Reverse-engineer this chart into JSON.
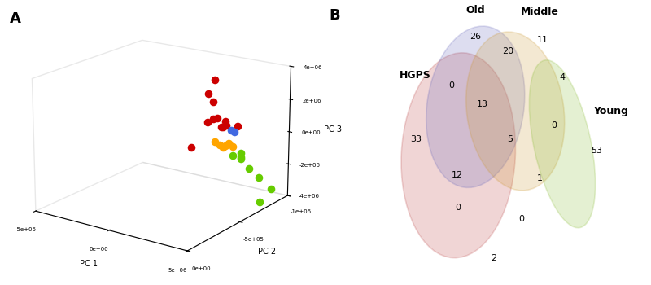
{
  "panel_a_label": "A",
  "panel_b_label": "B",
  "pc1_label": "PC 1",
  "pc2_label": "PC 2",
  "pc3_label": "PC 3",
  "young_color": "#66cc00",
  "middle_color": "#FFA500",
  "old_color": "#4169E1",
  "hgps_color": "#CC0000",
  "young_points": [
    [
      4800000.0,
      -450000.0,
      100000.0
    ],
    [
      5000000.0,
      -500000.0,
      150000.0
    ],
    [
      5100000.0,
      -480000.0,
      0.0
    ],
    [
      4900000.0,
      -520000.0,
      -300000.0
    ],
    [
      5200000.0,
      -550000.0,
      -900000.0
    ],
    [
      5500000.0,
      -600000.0,
      -1500000.0
    ],
    [
      5700000.0,
      -700000.0,
      -2500000.0
    ],
    [
      5300000.0,
      -650000.0,
      -3200000.0
    ]
  ],
  "middle_points": [
    [
      4000000.0,
      -400000.0,
      900000.0
    ],
    [
      4200000.0,
      -420000.0,
      700000.0
    ],
    [
      4400000.0,
      -440000.0,
      650000.0
    ],
    [
      4500000.0,
      -460000.0,
      750000.0
    ],
    [
      4300000.0,
      -430000.0,
      550000.0
    ],
    [
      4600000.0,
      -480000.0,
      500000.0
    ]
  ],
  "old_points": [
    [
      4600000.0,
      -460000.0,
      1500000.0
    ],
    [
      4700000.0,
      -480000.0,
      1400000.0
    ]
  ],
  "hgps_points": [
    [
      3000000.0,
      -550000.0,
      3950000.0
    ],
    [
      1800000.0,
      -720000.0,
      2000000.0
    ],
    [
      3500000.0,
      -500000.0,
      1900000.0
    ],
    [
      3200000.0,
      -450000.0,
      1750000.0
    ],
    [
      3700000.0,
      -550000.0,
      1650000.0
    ],
    [
      4000000.0,
      -480000.0,
      1550000.0
    ],
    [
      3600000.0,
      -520000.0,
      1350000.0
    ],
    [
      3400000.0,
      -600000.0,
      1200000.0
    ],
    [
      3800000.0,
      -650000.0,
      1100000.0
    ],
    [
      800000.0,
      -820000.0,
      2050000.0
    ],
    [
      500000.0,
      -920000.0,
      150000.0
    ],
    [
      1500000.0,
      -550000.0,
      -400000.0
    ]
  ],
  "xticks": [
    -5000000,
    0,
    5000000
  ],
  "xtick_labels": [
    "-5e+06",
    "0e+00",
    "5e+06"
  ],
  "yticks": [
    0,
    -500000,
    -1000000
  ],
  "ytick_labels": [
    "0e+00",
    "-5e+05",
    "-1e+06"
  ],
  "zticks": [
    -4000000,
    -2000000,
    0,
    2000000,
    4000000
  ],
  "ztick_labels": [
    "-4e+06",
    "-2e+06",
    "0e+00",
    "2e+06",
    "4e+06"
  ],
  "venn_numbers": {
    "old_only": "26",
    "old_middle": "20",
    "middle_only": "11",
    "hgps_old": "0",
    "hgps_old_middle": "13",
    "old_middle_young": "4",
    "hgps_only": "33",
    "all_four": "5",
    "middle_young": "0",
    "hgps_middle": "12",
    "young_only": "53",
    "hgps_young": "1",
    "hgps_old_young": "0",
    "hgps_middle_young": "0",
    "bottom_middle": "2"
  },
  "venn_labels": {
    "old": "Old",
    "middle": "Middle",
    "young": "Young",
    "hgps": "HGPS"
  },
  "venn_colors": {
    "old": "#6666BB",
    "middle": "#CC9933",
    "young": "#88BB33",
    "hgps": "#BB4444"
  }
}
